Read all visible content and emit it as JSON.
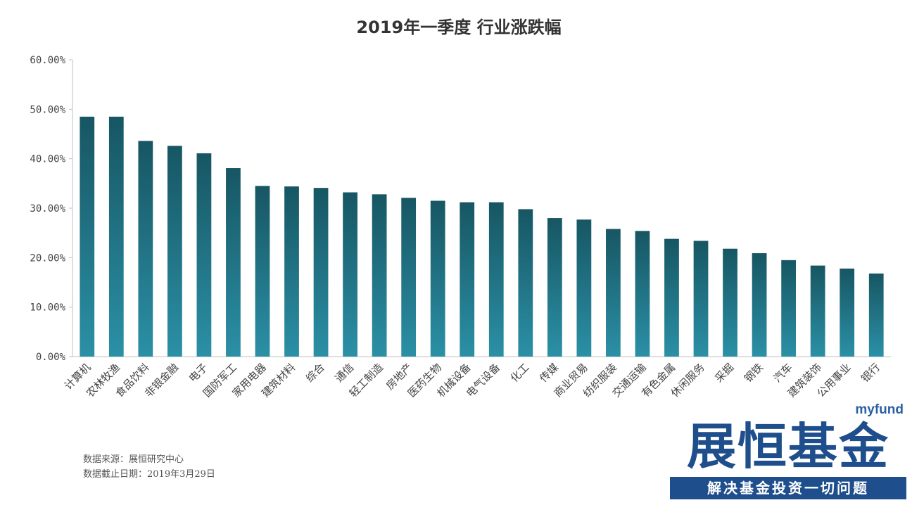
{
  "chart_data": {
    "type": "bar",
    "title": "2019年一季度 行业涨跌幅",
    "xlabel": "",
    "ylabel": "",
    "ylim": [
      0,
      60
    ],
    "yticks": [
      "0.00%",
      "10.00%",
      "20.00%",
      "30.00%",
      "40.00%",
      "50.00%",
      "60.00%"
    ],
    "grid": false,
    "categories": [
      "计算机",
      "农林牧渔",
      "食品饮料",
      "非银金融",
      "电子",
      "国防军工",
      "家用电器",
      "建筑材料",
      "综合",
      "通信",
      "轻工制造",
      "房地产",
      "医药生物",
      "机械设备",
      "电气设备",
      "化工",
      "传媒",
      "商业贸易",
      "纺织服装",
      "交通运输",
      "有色金属",
      "休闲服务",
      "采掘",
      "钢铁",
      "汽车",
      "建筑装饰",
      "公用事业",
      "银行"
    ],
    "values": [
      48.5,
      48.5,
      43.6,
      42.6,
      41.1,
      38.1,
      34.5,
      34.4,
      34.1,
      33.2,
      32.8,
      32.1,
      31.5,
      31.2,
      31.2,
      29.8,
      28.0,
      27.7,
      25.8,
      25.4,
      23.8,
      23.4,
      21.8,
      20.9,
      19.5,
      18.4,
      17.8,
      16.8
    ],
    "colors": {
      "bar_top": "#175663",
      "bar_bottom": "#2b90a6"
    }
  },
  "footer": {
    "source": "数据来源：展恒研究中心",
    "date": "数据截止日期：2019年3月29日"
  },
  "logo": {
    "tag": "myfund",
    "name": "展恒基金",
    "slogan": "解决基金投资一切问题"
  }
}
